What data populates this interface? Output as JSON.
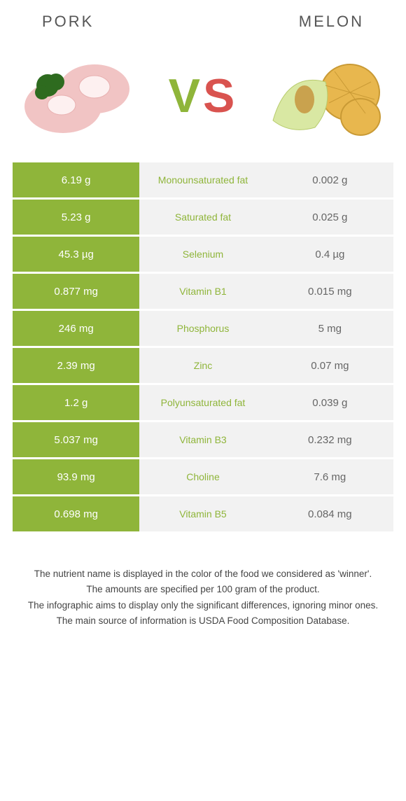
{
  "header": {
    "left_title": "Pork",
    "right_title": "Melon"
  },
  "vs": {
    "v": "V",
    "s": "S"
  },
  "colors": {
    "winner_left": "#8fb53a",
    "neutral_bg": "#f2f2f2",
    "label_left_color": "#8fb53a",
    "label_right_color": "#d9534f",
    "text_light": "#ffffff",
    "text_muted": "#666666"
  },
  "table": {
    "rows": [
      {
        "left": "6.19 g",
        "label": "Monounsaturated fat",
        "right": "0.002 g",
        "winner": "left"
      },
      {
        "left": "5.23 g",
        "label": "Saturated fat",
        "right": "0.025 g",
        "winner": "left"
      },
      {
        "left": "45.3 µg",
        "label": "Selenium",
        "right": "0.4 µg",
        "winner": "left"
      },
      {
        "left": "0.877 mg",
        "label": "Vitamin B1",
        "right": "0.015 mg",
        "winner": "left"
      },
      {
        "left": "246 mg",
        "label": "Phosphorus",
        "right": "5 mg",
        "winner": "left"
      },
      {
        "left": "2.39 mg",
        "label": "Zinc",
        "right": "0.07 mg",
        "winner": "left"
      },
      {
        "left": "1.2 g",
        "label": "Polyunsaturated fat",
        "right": "0.039 g",
        "winner": "left"
      },
      {
        "left": "5.037 mg",
        "label": "Vitamin B3",
        "right": "0.232 mg",
        "winner": "left"
      },
      {
        "left": "93.9 mg",
        "label": "Choline",
        "right": "7.6 mg",
        "winner": "left"
      },
      {
        "left": "0.698 mg",
        "label": "Vitamin B5",
        "right": "0.084 mg",
        "winner": "left"
      }
    ]
  },
  "footnotes": [
    "The nutrient name is displayed in the color of the food we considered as 'winner'.",
    "The amounts are specified per 100 gram of the product.",
    "The infographic aims to display only the significant differences, ignoring minor ones.",
    "The main source of information is USDA Food Composition Database."
  ]
}
